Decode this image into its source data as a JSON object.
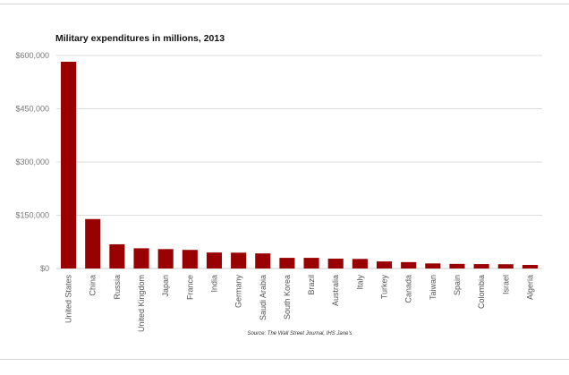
{
  "chart_data": {
    "type": "bar",
    "title": "Military expenditures in millions, 2013",
    "source": "Source: The Wall Street Journal, IHS Jane's",
    "categories": [
      "United States",
      "China",
      "Russia",
      "United Kingdom",
      "Japan",
      "France",
      "India",
      "Germany",
      "Saudi Arabia",
      "South Korea",
      "Brazil",
      "Australia",
      "Italy",
      "Turkey",
      "Canada",
      "Taiwan",
      "Spain",
      "Colombia",
      "Israel",
      "Algeria"
    ],
    "values": [
      582400,
      139200,
      68200,
      57000,
      54600,
      52400,
      45000,
      44600,
      42500,
      30000,
      30000,
      27800,
      27000,
      19900,
      18000,
      14300,
      13000,
      12400,
      12000,
      10000
    ],
    "yticks": [
      0,
      150000,
      300000,
      450000,
      600000
    ],
    "ytick_labels": [
      "$0",
      "$150,000",
      "$300,000",
      "$450,000",
      "$600,000"
    ],
    "ylim": [
      0,
      600000
    ],
    "bar_color": "#990000",
    "grid": true,
    "xlabel": "",
    "ylabel": ""
  }
}
